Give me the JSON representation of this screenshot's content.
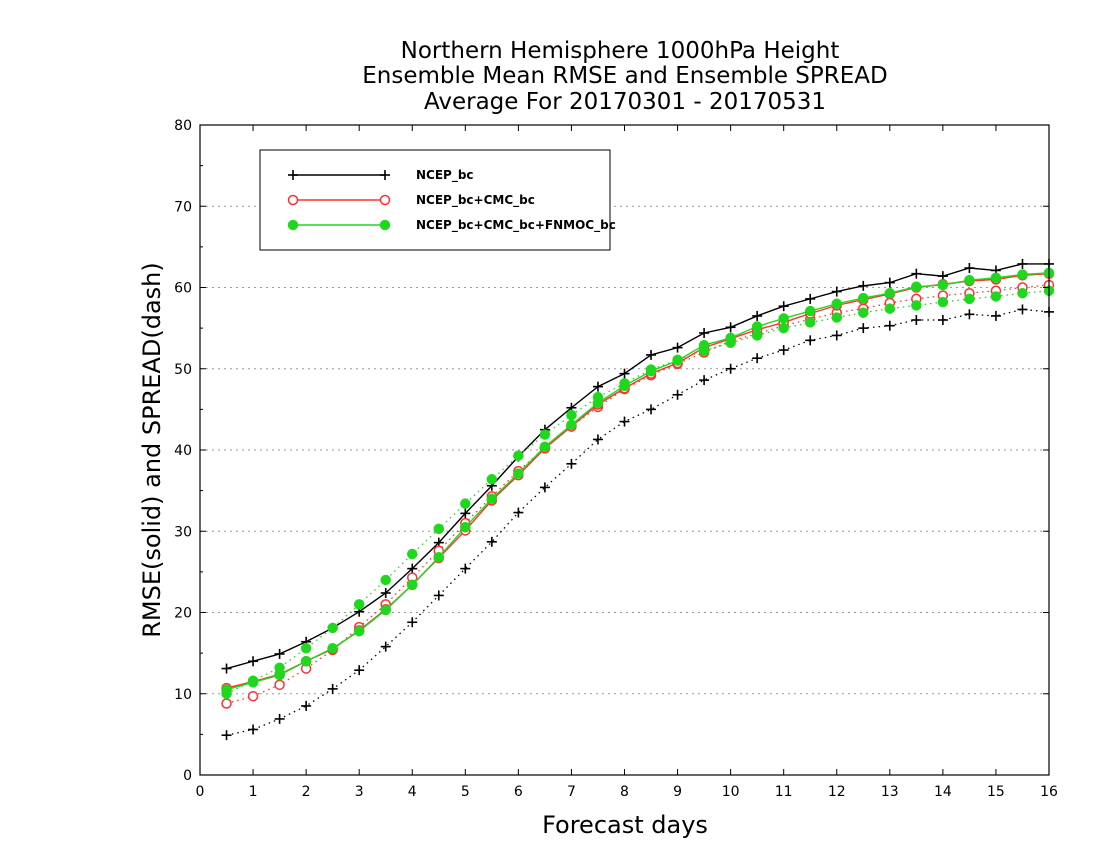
{
  "chart_data": {
    "type": "line",
    "title_lines": [
      "Northern Hemisphere 1000hPa Height",
      "Ensemble Mean RMSE and Ensemble SPREAD",
      "Average For 20170301 - 20170531"
    ],
    "xlabel": "Forecast days",
    "ylabel": "RMSE(solid) and SPREAD(dash)",
    "xlim": [
      0,
      16
    ],
    "ylim": [
      0,
      80
    ],
    "xticks": [
      0,
      1,
      2,
      3,
      4,
      5,
      6,
      7,
      8,
      9,
      10,
      11,
      12,
      13,
      14,
      15,
      16
    ],
    "yticks": [
      0,
      10,
      20,
      30,
      40,
      50,
      60,
      70,
      80
    ],
    "grid": "horizontal dotted",
    "legend_placement": "top-left",
    "x": [
      0.5,
      1,
      1.5,
      2,
      2.5,
      3,
      3.5,
      4,
      4.5,
      5,
      5.5,
      6,
      6.5,
      7,
      7.5,
      8,
      8.5,
      9,
      9.5,
      10,
      10.5,
      11,
      11.5,
      12,
      12.5,
      13,
      13.5,
      14,
      14.5,
      15,
      15.5,
      16
    ],
    "series": [
      {
        "name": "NCEP_bc",
        "color": "#000000",
        "marker": "plus",
        "rmse": [
          13.1,
          14.0,
          14.9,
          16.4,
          18.1,
          20.1,
          22.4,
          25.4,
          28.6,
          32.2,
          35.6,
          39.2,
          42.5,
          45.2,
          47.8,
          49.4,
          51.7,
          52.6,
          54.4,
          55.1,
          56.5,
          57.7,
          58.6,
          59.5,
          60.2,
          60.6,
          61.7,
          61.4,
          62.4,
          62.1,
          62.9,
          62.9
        ],
        "spread": [
          4.9,
          5.6,
          6.9,
          8.5,
          10.6,
          12.9,
          15.8,
          18.8,
          22.1,
          25.4,
          28.7,
          32.3,
          35.4,
          38.3,
          41.3,
          43.5,
          45.0,
          46.8,
          48.6,
          50.0,
          51.3,
          52.3,
          53.5,
          54.1,
          55.0,
          55.3,
          56.0,
          56.0,
          56.7,
          56.5,
          57.3,
          57.0
        ]
      },
      {
        "name": "NCEP_bc+CMC_bc",
        "color": "#ff3030",
        "marker": "open-circle",
        "rmse": [
          10.7,
          11.5,
          12.4,
          14.0,
          15.5,
          17.8,
          20.4,
          23.4,
          26.7,
          30.1,
          33.8,
          36.9,
          40.2,
          42.9,
          45.6,
          47.6,
          49.4,
          50.7,
          52.6,
          53.7,
          54.8,
          55.7,
          56.8,
          57.8,
          58.5,
          59.2,
          60.0,
          60.4,
          60.8,
          61.0,
          61.5,
          61.7
        ],
        "spread": [
          8.8,
          9.7,
          11.1,
          13.1,
          15.4,
          18.2,
          21.0,
          24.3,
          27.6,
          31.0,
          34.3,
          37.4,
          40.3,
          42.9,
          45.3,
          47.5,
          49.2,
          50.6,
          52.0,
          53.4,
          54.3,
          55.3,
          56.1,
          56.9,
          57.4,
          58.1,
          58.6,
          59.0,
          59.3,
          59.6,
          60.0,
          60.3
        ]
      },
      {
        "name": "NCEP_bc+CMC_bc+FNMOC_bc",
        "color": "#1ed81e",
        "marker": "filled-circle",
        "rmse": [
          10.5,
          11.4,
          12.3,
          14.0,
          15.6,
          17.7,
          20.3,
          23.4,
          26.8,
          30.5,
          34.0,
          37.1,
          40.4,
          43.1,
          45.8,
          47.9,
          49.7,
          51.0,
          52.9,
          53.8,
          55.2,
          56.2,
          57.1,
          58.0,
          58.7,
          59.3,
          60.1,
          60.3,
          60.9,
          61.2,
          61.6,
          61.8
        ],
        "spread": [
          10.0,
          11.6,
          13.2,
          15.6,
          18.1,
          21.0,
          24.0,
          27.2,
          30.3,
          33.4,
          36.4,
          39.3,
          41.9,
          44.3,
          46.5,
          48.2,
          49.9,
          51.1,
          52.2,
          53.2,
          54.1,
          55.0,
          55.7,
          56.3,
          56.9,
          57.4,
          57.8,
          58.2,
          58.6,
          58.9,
          59.3,
          59.6
        ]
      }
    ]
  }
}
